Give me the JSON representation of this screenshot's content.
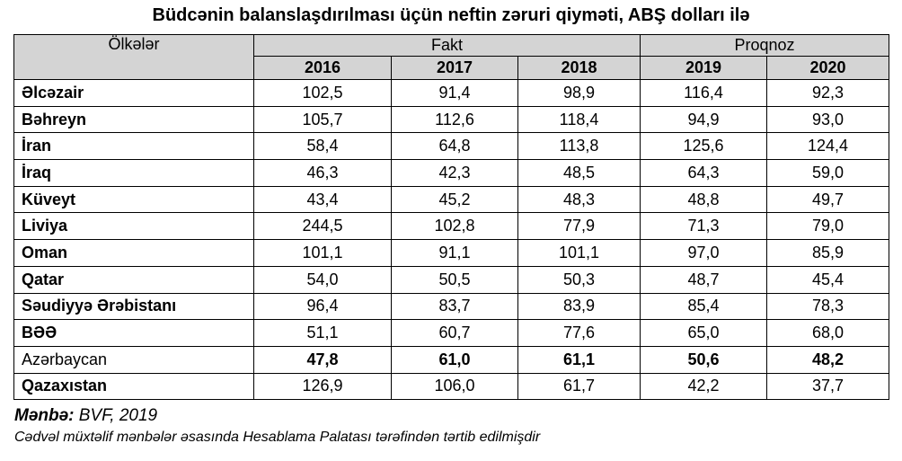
{
  "title": "Büdcənin balanslaşdırılması üçün neftin zəruri qiyməti, ABŞ dolları ilə",
  "header": {
    "country": "Ölkələr",
    "fakt": "Fakt",
    "prognoz": "Proqnoz",
    "years": [
      "2016",
      "2017",
      "2018",
      "2019",
      "2020"
    ]
  },
  "rows": [
    {
      "country": "Əlcəzair",
      "values": [
        "102,5",
        "91,4",
        "98,9",
        "116,4",
        "92,3"
      ]
    },
    {
      "country": "Bəhreyn",
      "values": [
        "105,7",
        "112,6",
        "118,4",
        "94,9",
        "93,0"
      ]
    },
    {
      "country": "İran",
      "values": [
        "58,4",
        "64,8",
        "113,8",
        "125,6",
        "124,4"
      ]
    },
    {
      "country": "İraq",
      "values": [
        "46,3",
        "42,3",
        "48,5",
        "64,3",
        "59,0"
      ]
    },
    {
      "country": "Küveyt",
      "values": [
        "43,4",
        "45,2",
        "48,3",
        "48,8",
        "49,7"
      ]
    },
    {
      "country": "Liviya",
      "values": [
        "244,5",
        "102,8",
        "77,9",
        "71,3",
        "79,0"
      ]
    },
    {
      "country": "Oman",
      "values": [
        "101,1",
        "91,1",
        "101,1",
        "97,0",
        "85,9"
      ]
    },
    {
      "country": "Qatar",
      "values": [
        "54,0",
        "50,5",
        "50,3",
        "48,7",
        "45,4"
      ]
    },
    {
      "country": "Səudiyyə Ərəbistanı",
      "values": [
        "96,4",
        "83,7",
        "83,9",
        "85,4",
        "78,3"
      ]
    },
    {
      "country": "BƏƏ",
      "values": [
        "51,1",
        "60,7",
        "77,6",
        "65,0",
        "68,0"
      ]
    },
    {
      "country": "Azərbaycan",
      "values": [
        "47,8",
        "61,0",
        "61,1",
        "50,6",
        "48,2"
      ],
      "highlight": true
    },
    {
      "country": "Qazaxıstan",
      "values": [
        "126,9",
        "106,0",
        "61,7",
        "42,2",
        "37,7"
      ]
    }
  ],
  "source": {
    "label": "Mənbə:",
    "text": " BVF, 2019"
  },
  "note": "Cədvəl müxtəlif mənbələr əsasında Hesablama Palatası tərəfindən tərtib edilmişdir"
}
